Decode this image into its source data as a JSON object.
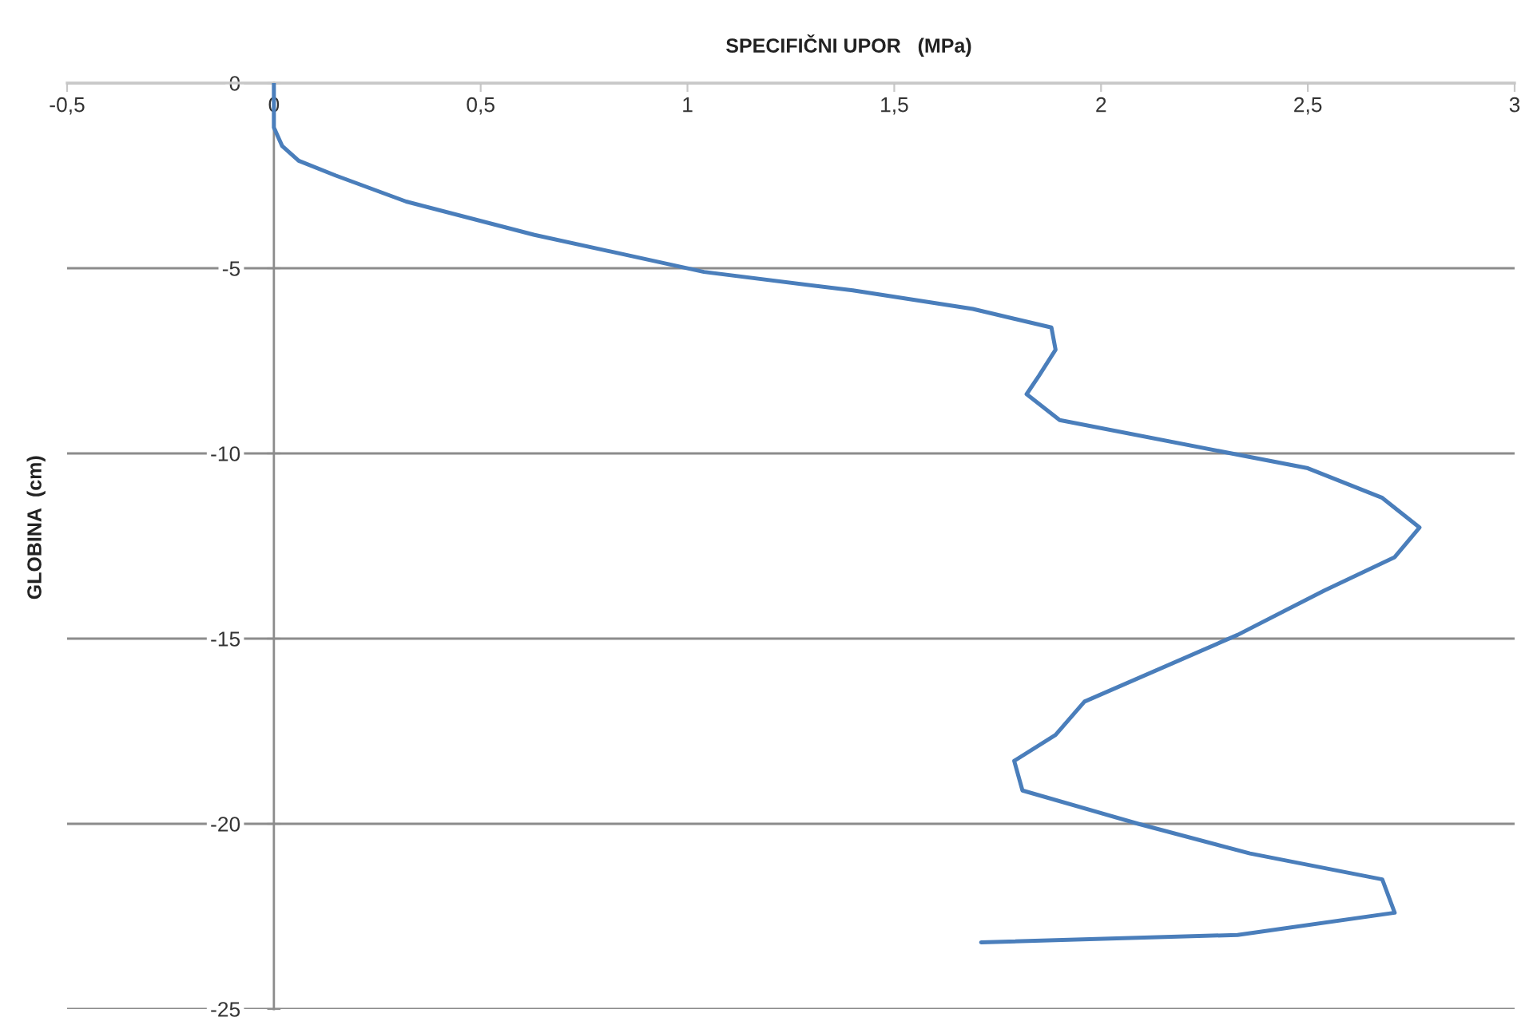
{
  "chart_data": {
    "type": "line",
    "xlabel": "SPECIFIČNI UPOR   (MPa)",
    "ylabel": "GLOBINA  (cm)",
    "series": [
      {
        "color": "#4a7ebb",
        "x": [
          0,
          0,
          0.02,
          0.06,
          0.15,
          0.32,
          0.63,
          1.04,
          1.4,
          1.69,
          1.88,
          1.89,
          1.85,
          1.82,
          1.9,
          2.5,
          2.68,
          2.77,
          2.71,
          2.54,
          2.33,
          1.96,
          1.89,
          1.79,
          1.81,
          2.09,
          2.36,
          2.68,
          2.71,
          2.33,
          1.71
        ],
        "values": [
          0,
          -1.2,
          -1.7,
          -2.1,
          -2.5,
          -3.2,
          -4.1,
          -5.1,
          -5.6,
          -6.1,
          -6.6,
          -7.2,
          -7.9,
          -8.4,
          -9.1,
          -10.4,
          -11.2,
          -12.0,
          -12.8,
          -13.7,
          -14.9,
          -16.7,
          -17.6,
          -18.3,
          -19.1,
          -20.0,
          -20.8,
          -21.5,
          -22.4,
          -23.0,
          -23.2
        ]
      }
    ],
    "xlim": [
      -0.5,
      3
    ],
    "xticks": [
      {
        "value": -0.5,
        "label": "-0,5"
      },
      0,
      {
        "value": 0.5,
        "label": "0,5"
      },
      1,
      {
        "value": 1.5,
        "label": "1,5"
      },
      2,
      {
        "value": 2.5,
        "label": "2,5"
      },
      3
    ],
    "ylim": [
      -25,
      0
    ],
    "yticks": [
      0,
      -5,
      -10,
      -15,
      -20,
      -25
    ],
    "grid": "y"
  }
}
